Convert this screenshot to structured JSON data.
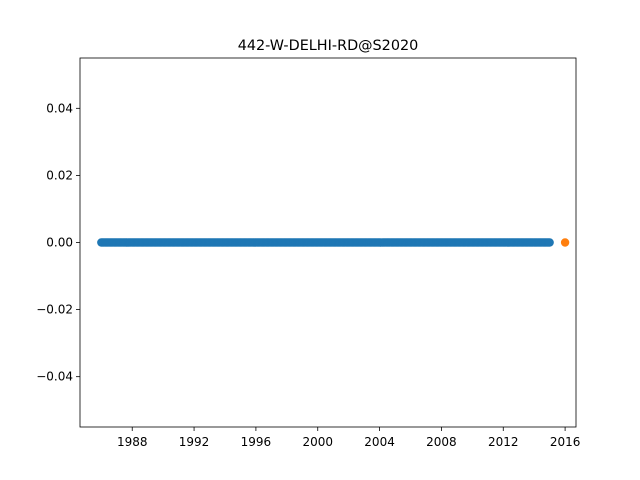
{
  "chart_data": {
    "type": "scatter",
    "title": "442-W-DELHI-RD@S2020",
    "xlabel": "",
    "ylabel": "",
    "x_axis_kind": "date",
    "xlim": [
      "1984-08-15",
      "2016-09-15"
    ],
    "ylim": [
      -0.055,
      0.055
    ],
    "x_ticks": [
      "1988",
      "1992",
      "1996",
      "2000",
      "2004",
      "2008",
      "2012",
      "2016"
    ],
    "y_ticks": [
      "−0.04",
      "−0.02",
      "0.00",
      "0.02",
      "0.04"
    ],
    "grid": false,
    "legend": false,
    "series": [
      {
        "color": "#1f77b4",
        "x_start": "1986-01-01",
        "x_end": "2015-01-01",
        "frequency": "monthly",
        "y": 0.0
      },
      {
        "color": "#ff7f0e",
        "points": [
          {
            "x": "2016-01-01",
            "y": 0.0
          }
        ]
      }
    ]
  }
}
